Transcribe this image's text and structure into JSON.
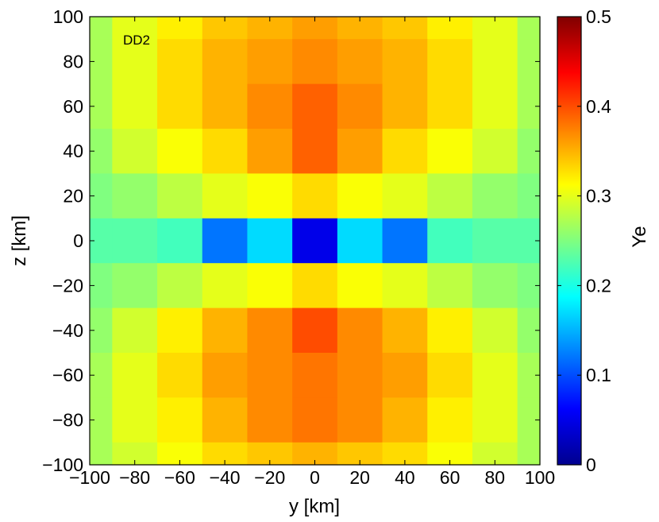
{
  "chart_data": {
    "type": "heatmap",
    "annotation": "DD2",
    "xlabel": "y [km]",
    "ylabel": "z [km]",
    "colorbar_label": "Ye",
    "xlim": [
      -100,
      100
    ],
    "ylim": [
      -100,
      100
    ],
    "clim": [
      0,
      0.5
    ],
    "colormap": "jet",
    "x_ticks": [
      -100,
      -80,
      -60,
      -40,
      -20,
      0,
      20,
      40,
      60,
      80,
      100
    ],
    "y_ticks": [
      -100,
      -80,
      -60,
      -40,
      -20,
      0,
      20,
      40,
      60,
      80,
      100
    ],
    "colorbar_ticks": [
      0,
      0.1,
      0.2,
      0.3,
      0.4,
      0.5
    ],
    "x_tick_labels": [
      "−100",
      "−80",
      "−60",
      "−40",
      "−20",
      "0",
      "20",
      "40",
      "60",
      "80",
      "100"
    ],
    "y_tick_labels": [
      "−100",
      "−80",
      "−60",
      "−40",
      "−20",
      "0",
      "20",
      "40",
      "60",
      "80",
      "100"
    ],
    "colorbar_tick_labels": [
      "0",
      "0.1",
      "0.2",
      "0.3",
      "0.4",
      "0.5"
    ],
    "x": [
      -100,
      -80,
      -60,
      -40,
      -20,
      0,
      20,
      40,
      60,
      80,
      100
    ],
    "y": [
      100,
      80,
      60,
      40,
      20,
      0,
      -20,
      -40,
      -60,
      -80,
      -100
    ],
    "values": [
      [
        0.27,
        0.3,
        0.32,
        0.34,
        0.35,
        0.36,
        0.35,
        0.34,
        0.32,
        0.3,
        0.27
      ],
      [
        0.27,
        0.3,
        0.33,
        0.35,
        0.36,
        0.37,
        0.36,
        0.35,
        0.33,
        0.3,
        0.27
      ],
      [
        0.27,
        0.3,
        0.33,
        0.35,
        0.37,
        0.39,
        0.37,
        0.35,
        0.33,
        0.3,
        0.27
      ],
      [
        0.26,
        0.29,
        0.31,
        0.33,
        0.36,
        0.39,
        0.36,
        0.33,
        0.31,
        0.29,
        0.26
      ],
      [
        0.25,
        0.26,
        0.28,
        0.3,
        0.31,
        0.33,
        0.31,
        0.3,
        0.28,
        0.26,
        0.25
      ],
      [
        0.23,
        0.23,
        0.22,
        0.12,
        0.17,
        0.05,
        0.17,
        0.12,
        0.22,
        0.23,
        0.23
      ],
      [
        0.25,
        0.26,
        0.28,
        0.3,
        0.31,
        0.33,
        0.31,
        0.3,
        0.28,
        0.26,
        0.25
      ],
      [
        0.26,
        0.29,
        0.32,
        0.35,
        0.37,
        0.4,
        0.37,
        0.35,
        0.32,
        0.29,
        0.26
      ],
      [
        0.27,
        0.3,
        0.33,
        0.36,
        0.37,
        0.38,
        0.37,
        0.36,
        0.33,
        0.3,
        0.27
      ],
      [
        0.27,
        0.3,
        0.32,
        0.35,
        0.37,
        0.38,
        0.37,
        0.35,
        0.32,
        0.3,
        0.27
      ],
      [
        0.27,
        0.29,
        0.31,
        0.33,
        0.34,
        0.35,
        0.34,
        0.33,
        0.31,
        0.29,
        0.27
      ]
    ]
  }
}
